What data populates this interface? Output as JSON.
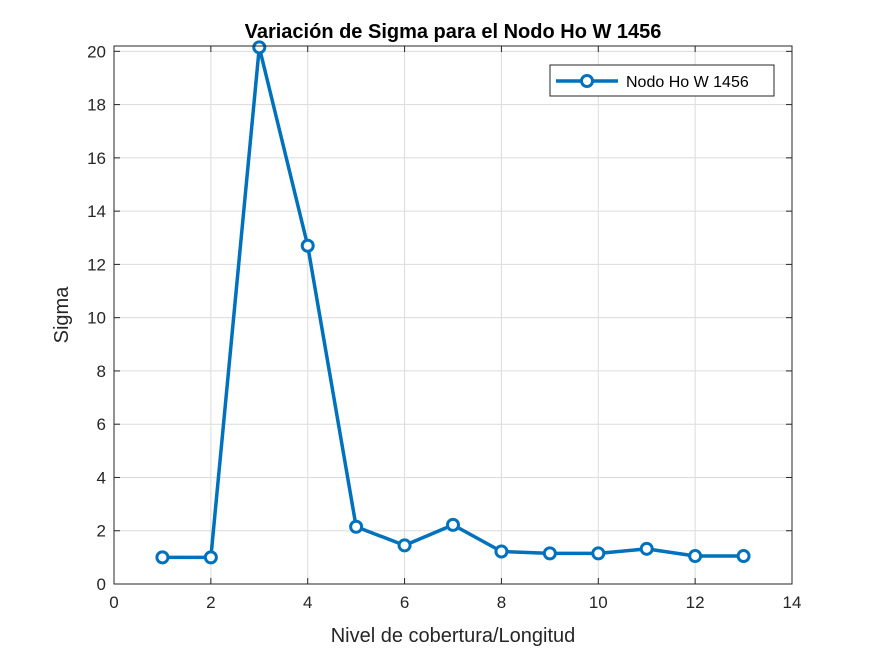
{
  "chart_data": {
    "type": "line",
    "title": "Variación de Sigma para el Nodo Ho W 1456",
    "xlabel": "Nivel de cobertura/Longitud",
    "ylabel": "Sigma",
    "xlim": [
      0,
      14
    ],
    "ylim": [
      0,
      20.2
    ],
    "xticks": [
      0,
      2,
      4,
      6,
      8,
      10,
      12,
      14
    ],
    "yticks": [
      0,
      2,
      4,
      6,
      8,
      10,
      12,
      14,
      16,
      18,
      20
    ],
    "grid": true,
    "box": true,
    "legend_position": "top-right",
    "series": [
      {
        "name": "Nodo Ho W 1456",
        "color": "#0072BD",
        "marker": "circle",
        "x": [
          1,
          2,
          3,
          4,
          5,
          6,
          7,
          8,
          9,
          10,
          11,
          12,
          13
        ],
        "y": [
          1.0,
          1.0,
          20.15,
          12.7,
          2.15,
          1.45,
          2.22,
          1.22,
          1.15,
          1.15,
          1.32,
          1.05,
          1.05
        ]
      }
    ]
  }
}
